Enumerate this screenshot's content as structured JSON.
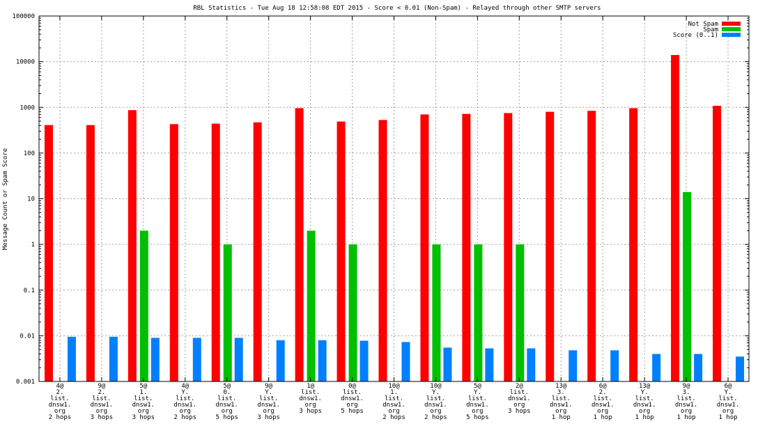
{
  "chart_data": {
    "type": "bar",
    "title": "RBL Statistics - Tue Aug 18 12:58:08 EDT 2015 - Score < 0.01 (Non-Spam) - Relayed through other SMTP servers",
    "xlabel": "",
    "ylabel": "Message Count or Spam Score",
    "yscale": "log",
    "ylim": [
      0.001,
      100000
    ],
    "yticks": [
      "0.001",
      "0.01",
      "0.1",
      "1",
      "10",
      "100",
      "1000",
      "10000",
      "100000"
    ],
    "grid": true,
    "legend_position": "top-right",
    "categories": [
      [
        "4@",
        "2.",
        "list.",
        "dnsw1.",
        "org",
        "2 hops"
      ],
      [
        "9@",
        "2.",
        "list.",
        "dnsw1.",
        "org",
        "3 hops"
      ],
      [
        "5@",
        "1.",
        "list.",
        "dnsw1.",
        "org",
        "3 hops"
      ],
      [
        "4@",
        "Y.",
        "list.",
        "dnsw1.",
        "org",
        "2 hops"
      ],
      [
        "5@",
        "0.",
        "list.",
        "dnsw1.",
        "org",
        "5 hops"
      ],
      [
        "9@",
        "Y.",
        "list.",
        "dnsw1.",
        "org",
        "3 hops"
      ],
      [
        "1@",
        "list.",
        "dnsw1.",
        "org",
        "3 hops"
      ],
      [
        "0@",
        "list.",
        "dnsw1.",
        "org",
        "5 hops"
      ],
      [
        "10@",
        "1.",
        "list.",
        "dnsw1.",
        "org",
        "2 hops"
      ],
      [
        "10@",
        "Y.",
        "list.",
        "dnsw1.",
        "org",
        "2 hops"
      ],
      [
        "5@",
        "Y.",
        "list.",
        "dnsw1.",
        "org",
        "5 hops"
      ],
      [
        "2@",
        "list.",
        "dnsw1.",
        "org",
        "3 hops"
      ],
      [
        "13@",
        "3.",
        "list.",
        "dnsw1.",
        "org",
        "1 hop"
      ],
      [
        "6@",
        "2.",
        "list.",
        "dnsw1.",
        "org",
        "1 hop"
      ],
      [
        "13@",
        "Y.",
        "list.",
        "dnsw1.",
        "org",
        "1 hop"
      ],
      [
        "9@",
        "3.",
        "list.",
        "dnsw1.",
        "org",
        "1 hop"
      ],
      [
        "6@",
        "Y.",
        "list.",
        "dnsw1.",
        "org",
        "1 hop"
      ]
    ],
    "series": [
      {
        "name": "Not Spam",
        "color": "#ff0000",
        "values": [
          410,
          410,
          870,
          430,
          440,
          470,
          960,
          490,
          530,
          700,
          720,
          750,
          800,
          840,
          960,
          14000,
          1080
        ]
      },
      {
        "name": "Spam",
        "color": "#00c000",
        "values": [
          null,
          null,
          2,
          null,
          1,
          null,
          2,
          1,
          null,
          1,
          1,
          1,
          null,
          null,
          null,
          14,
          null
        ]
      },
      {
        "name": "Score (0..1)",
        "color": "#0080ff",
        "values": [
          0.0095,
          0.0095,
          0.009,
          0.009,
          0.009,
          0.008,
          0.008,
          0.0078,
          0.0073,
          0.0055,
          0.0053,
          0.0053,
          0.0048,
          0.0048,
          0.004,
          0.004,
          0.0035
        ]
      }
    ]
  }
}
